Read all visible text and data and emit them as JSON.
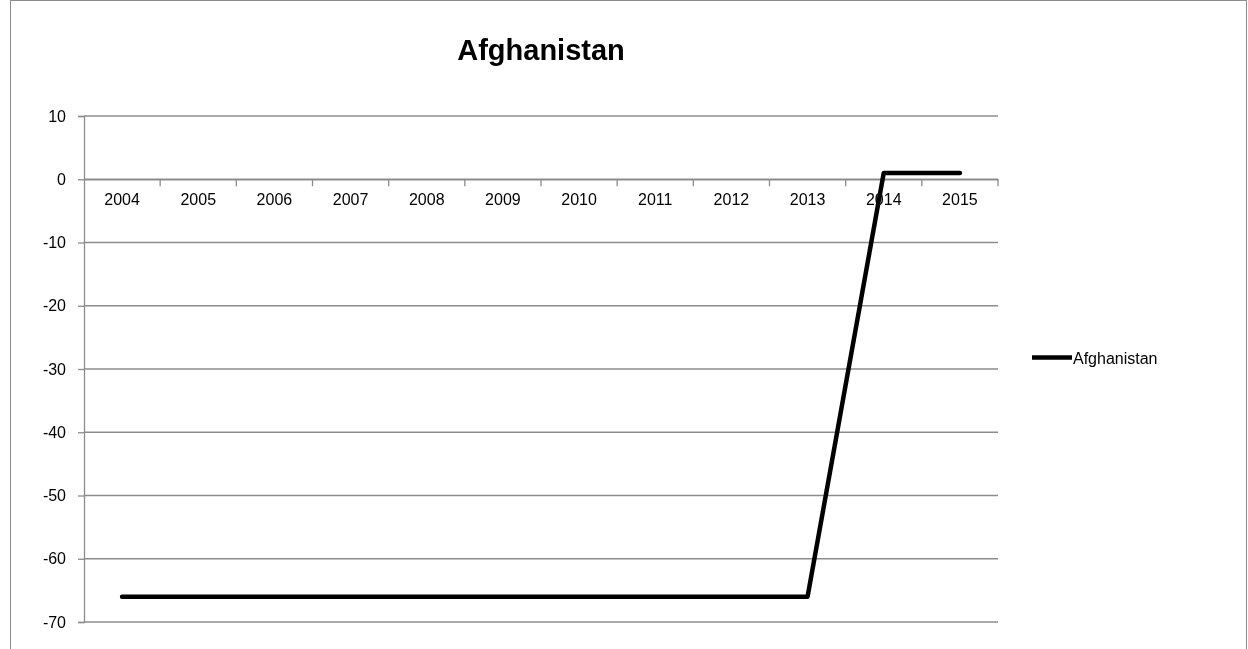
{
  "chart_data": {
    "type": "line",
    "title": "Afghanistan",
    "categories": [
      "2004",
      "2005",
      "2006",
      "2007",
      "2008",
      "2009",
      "2010",
      "2011",
      "2012",
      "2013",
      "2014",
      "2015"
    ],
    "series": [
      {
        "name": "Afghanistan",
        "color": "#000000",
        "values": [
          -66,
          -66,
          -66,
          -66,
          -66,
          -66,
          -66,
          -66,
          -66,
          -66,
          1,
          1
        ]
      }
    ],
    "ylim": [
      -70,
      10
    ],
    "yticks": [
      -70,
      -60,
      -50,
      -40,
      -30,
      -20,
      -10,
      0,
      10
    ],
    "grid": "y",
    "legend": "right",
    "line_style": "solid"
  }
}
